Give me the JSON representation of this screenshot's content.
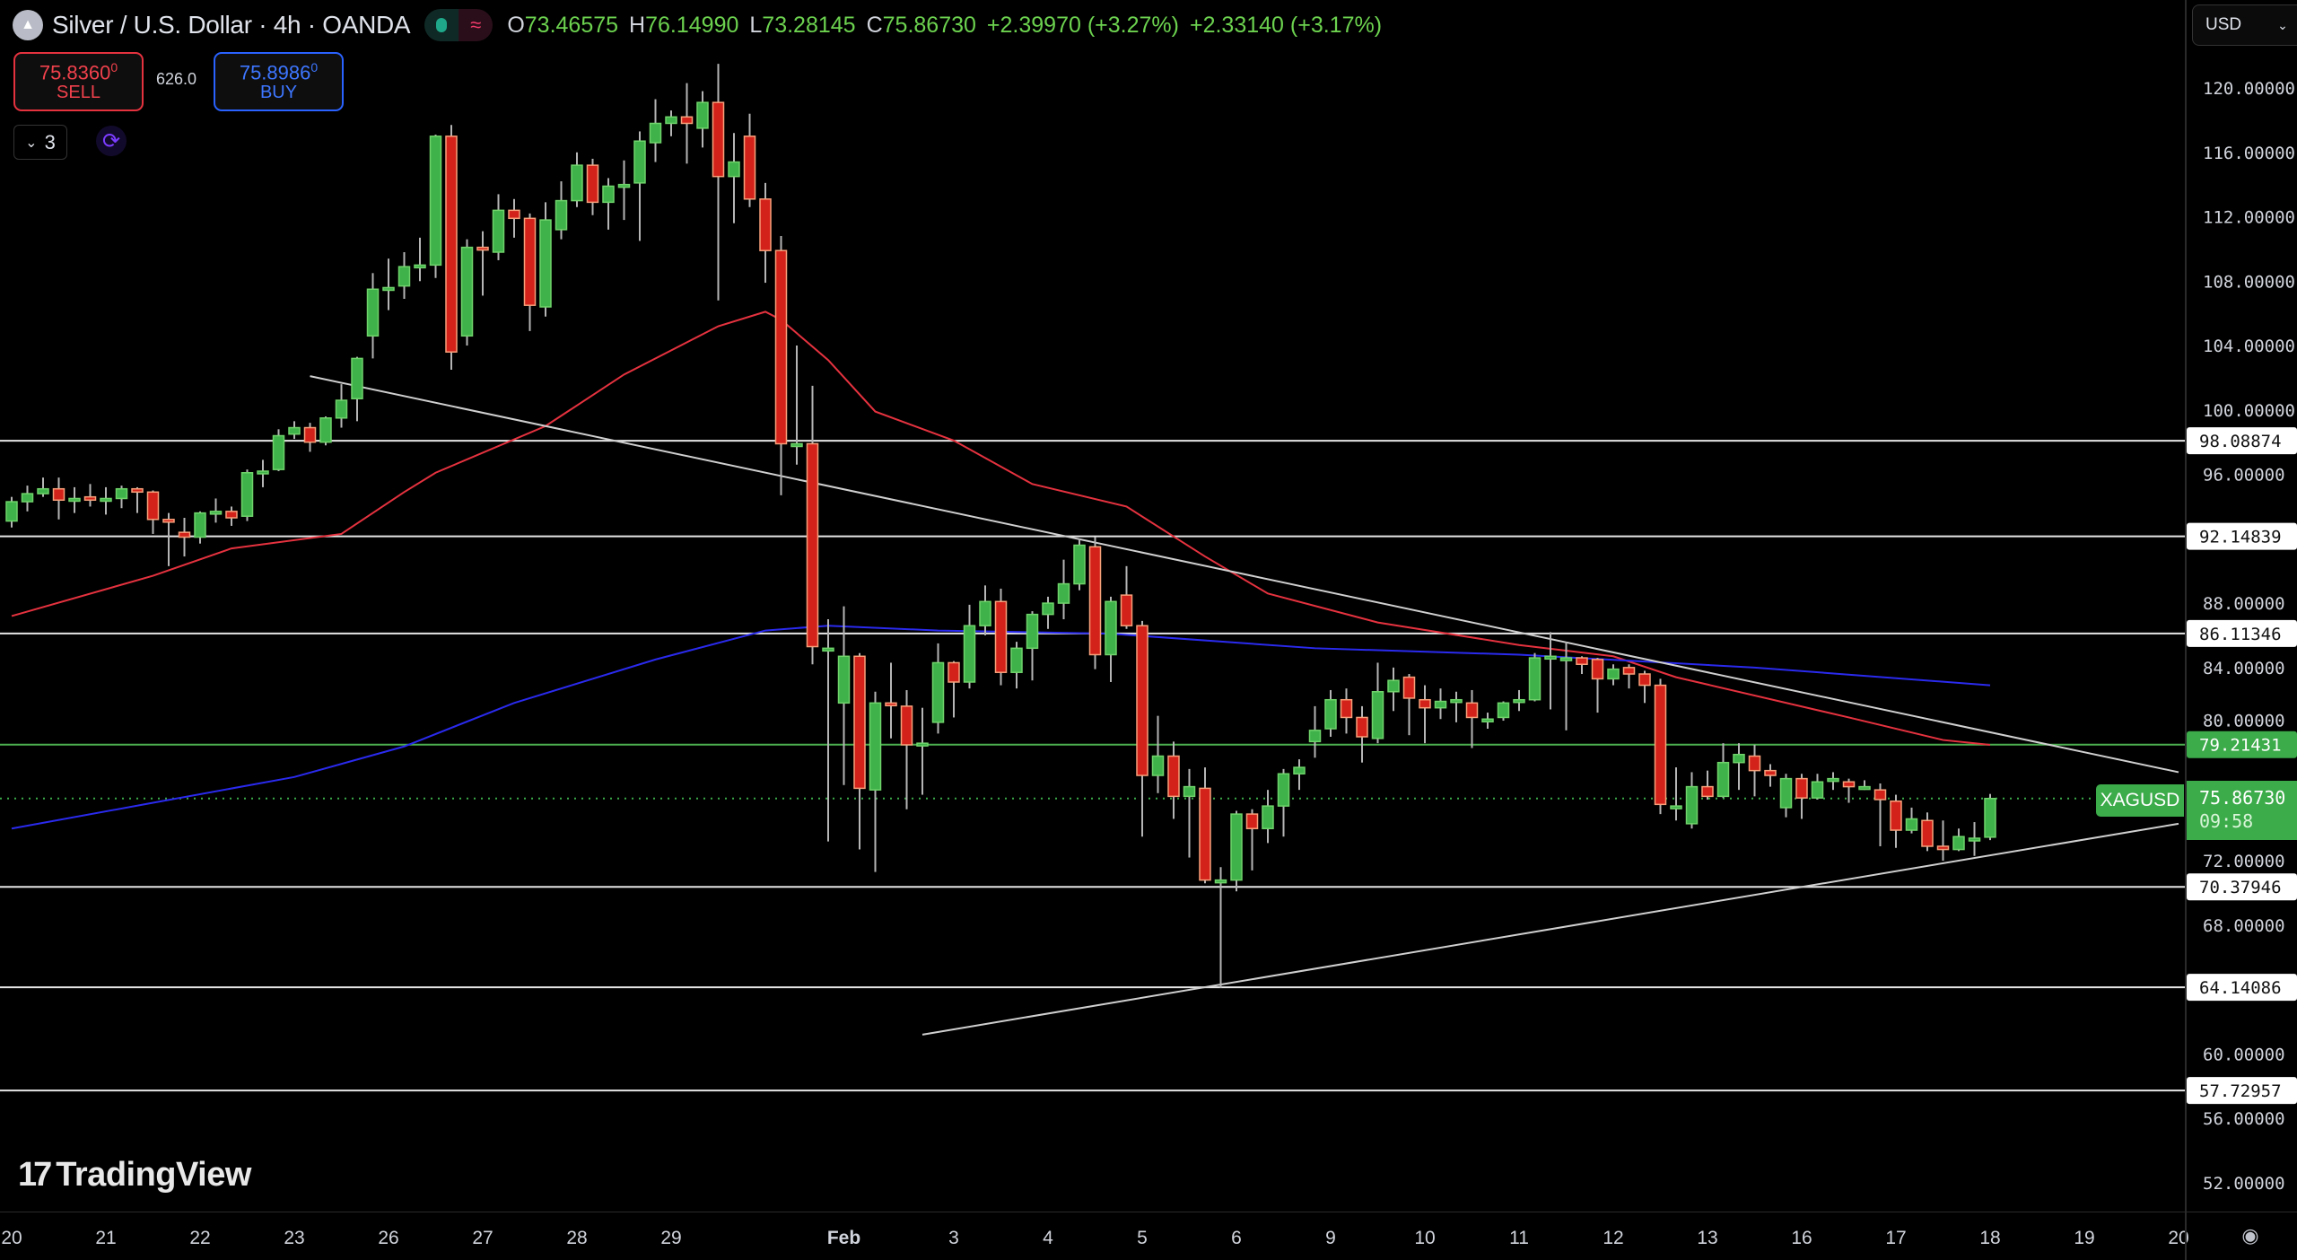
{
  "header": {
    "symbol_icon": "silver-coin-icon",
    "title": "Silver / U.S. Dollar · 4h · OANDA",
    "status_icons": [
      "market-open-dot-icon",
      "delayed-data-icon"
    ],
    "ohlc": [
      {
        "key": "O",
        "value": "73.46575"
      },
      {
        "key": "H",
        "value": "76.14990"
      },
      {
        "key": "L",
        "value": "73.28145"
      },
      {
        "key": "C",
        "value": "75.86730"
      }
    ],
    "change": "+2.39970 (+3.27%)",
    "change2": "+2.33140 (+3.17%)"
  },
  "trade": {
    "sell_price": "75.8360",
    "sell_sup": "0",
    "sell_label": "SELL",
    "spread": "626.0",
    "buy_price": "75.8986",
    "buy_sup": "0",
    "buy_label": "BUY"
  },
  "indicators_toggle": {
    "count": "3",
    "icon": "chevron-down-icon"
  },
  "currency_select": {
    "value": "USD",
    "icon": "chevron-down-icon"
  },
  "branding": {
    "text": "TradingView"
  },
  "colors": {
    "up": "#3fb24a",
    "up_border": "#6fd36a",
    "down": "#d3221a",
    "down_border": "#f7a07a",
    "wick": "#b5b5b5",
    "ma_red": "#e5323f",
    "ma_blue": "#2a2aee",
    "level": "#e6e6e6",
    "level_green": "#4caf50",
    "trend": "#cfcfcf"
  },
  "chart_data": {
    "type": "candlestick",
    "symbol": "XAGUSD",
    "interval": "4h",
    "ylim": [
      50,
      121.5
    ],
    "y_ticks": [
      "120.00000",
      "116.00000",
      "112.00000",
      "108.00000",
      "104.00000",
      "100.00000",
      "96.00000",
      "88.00000",
      "84.00000",
      "80.00000",
      "72.00000",
      "68.00000",
      "60.00000",
      "56.00000",
      "52.00000"
    ],
    "x_ticks": [
      {
        "label": "20",
        "bar": 0
      },
      {
        "label": "21",
        "bar": 6
      },
      {
        "label": "22",
        "bar": 12
      },
      {
        "label": "23",
        "bar": 18
      },
      {
        "label": "26",
        "bar": 24
      },
      {
        "label": "27",
        "bar": 30
      },
      {
        "label": "28",
        "bar": 36
      },
      {
        "label": "29",
        "bar": 42
      },
      {
        "label": "Feb",
        "bar": 53
      },
      {
        "label": "3",
        "bar": 60
      },
      {
        "label": "4",
        "bar": 66
      },
      {
        "label": "5",
        "bar": 72
      },
      {
        "label": "6",
        "bar": 78
      },
      {
        "label": "9",
        "bar": 84
      },
      {
        "label": "10",
        "bar": 90
      },
      {
        "label": "11",
        "bar": 96
      },
      {
        "label": "12",
        "bar": 102
      },
      {
        "label": "13",
        "bar": 108
      },
      {
        "label": "16",
        "bar": 114
      },
      {
        "label": "17",
        "bar": 120
      },
      {
        "label": "18",
        "bar": 126
      },
      {
        "label": "19",
        "bar": 132
      },
      {
        "label": "20",
        "bar": 138
      }
    ],
    "candles_ohlc": [
      [
        93.1,
        94.6,
        92.7,
        94.3
      ],
      [
        94.3,
        95.3,
        93.7,
        94.8
      ],
      [
        94.8,
        95.8,
        94.6,
        95.1
      ],
      [
        95.1,
        95.8,
        93.2,
        94.4
      ],
      [
        94.4,
        95.2,
        93.6,
        94.5
      ],
      [
        94.6,
        95.4,
        94.0,
        94.4
      ],
      [
        94.4,
        95.2,
        93.5,
        94.5
      ],
      [
        94.5,
        95.3,
        93.9,
        95.1
      ],
      [
        95.1,
        95.2,
        93.6,
        94.9
      ],
      [
        94.9,
        95.0,
        92.3,
        93.2
      ],
      [
        93.2,
        93.6,
        90.3,
        93.1
      ],
      [
        92.4,
        93.3,
        90.9,
        92.1
      ],
      [
        92.1,
        93.7,
        91.7,
        93.6
      ],
      [
        93.6,
        94.5,
        93.0,
        93.7
      ],
      [
        93.7,
        94.0,
        92.8,
        93.3
      ],
      [
        93.4,
        96.3,
        93.1,
        96.1
      ],
      [
        96.2,
        96.9,
        95.2,
        96.2
      ],
      [
        96.3,
        98.8,
        96.2,
        98.4
      ],
      [
        98.5,
        99.3,
        98.2,
        98.9
      ],
      [
        98.9,
        99.2,
        97.4,
        98.0
      ],
      [
        98.0,
        99.6,
        97.8,
        99.5
      ],
      [
        99.5,
        101.6,
        98.9,
        100.6
      ],
      [
        100.7,
        103.3,
        99.3,
        103.2
      ],
      [
        104.6,
        108.5,
        103.2,
        107.5
      ],
      [
        107.5,
        109.4,
        106.2,
        107.6
      ],
      [
        107.7,
        109.8,
        106.9,
        108.9
      ],
      [
        108.9,
        110.7,
        108.0,
        109.0
      ],
      [
        109.0,
        117.1,
        108.2,
        117.0
      ],
      [
        117.0,
        117.7,
        102.5,
        103.6
      ],
      [
        104.6,
        110.6,
        104.0,
        110.1
      ],
      [
        110.1,
        111.1,
        107.1,
        110.0
      ],
      [
        109.8,
        113.4,
        109.3,
        112.4
      ],
      [
        112.4,
        113.1,
        110.7,
        111.9
      ],
      [
        111.9,
        112.2,
        104.9,
        106.5
      ],
      [
        106.4,
        112.9,
        105.8,
        111.8
      ],
      [
        111.2,
        114.2,
        110.6,
        113.0
      ],
      [
        113.0,
        116.0,
        112.6,
        115.2
      ],
      [
        115.2,
        115.6,
        112.1,
        112.9
      ],
      [
        112.9,
        114.4,
        111.2,
        113.9
      ],
      [
        113.9,
        115.5,
        111.8,
        114.0
      ],
      [
        114.1,
        117.3,
        110.5,
        116.7
      ],
      [
        116.6,
        119.3,
        115.4,
        117.8
      ],
      [
        117.8,
        118.6,
        117.0,
        118.2
      ],
      [
        118.2,
        120.3,
        115.3,
        117.8
      ],
      [
        117.5,
        119.8,
        116.3,
        119.1
      ],
      [
        119.1,
        121.5,
        106.8,
        114.5
      ],
      [
        114.5,
        117.2,
        111.6,
        115.4
      ],
      [
        117.0,
        118.4,
        112.6,
        113.1
      ],
      [
        113.1,
        114.1,
        107.9,
        109.9
      ],
      [
        109.9,
        110.8,
        94.7,
        97.9
      ],
      [
        97.9,
        104.0,
        96.6,
        97.9
      ],
      [
        97.9,
        101.5,
        84.2,
        85.3
      ],
      [
        85.2,
        87.0,
        73.2,
        85.2
      ],
      [
        81.8,
        87.8,
        76.7,
        84.7
      ],
      [
        84.7,
        84.9,
        72.7,
        76.5
      ],
      [
        76.4,
        82.5,
        71.3,
        81.8
      ],
      [
        81.8,
        84.3,
        79.6,
        81.7
      ],
      [
        81.6,
        82.6,
        75.2,
        79.2
      ],
      [
        79.2,
        81.5,
        76.1,
        79.3
      ],
      [
        80.6,
        85.5,
        79.9,
        84.3
      ],
      [
        84.3,
        84.4,
        80.9,
        83.1
      ],
      [
        83.1,
        87.9,
        82.7,
        86.6
      ],
      [
        86.6,
        89.1,
        86.0,
        88.1
      ],
      [
        88.1,
        88.9,
        82.9,
        83.7
      ],
      [
        83.7,
        85.6,
        82.7,
        85.2
      ],
      [
        85.2,
        87.5,
        83.2,
        87.3
      ],
      [
        87.3,
        88.4,
        86.4,
        88.0
      ],
      [
        88.0,
        90.7,
        87.0,
        89.2
      ],
      [
        89.2,
        92.0,
        88.8,
        91.6
      ],
      [
        91.5,
        92.1,
        83.9,
        84.8
      ],
      [
        84.8,
        88.4,
        83.1,
        88.1
      ],
      [
        88.5,
        90.3,
        86.4,
        86.6
      ],
      [
        86.6,
        86.9,
        73.5,
        77.3
      ],
      [
        77.3,
        81.0,
        76.2,
        78.5
      ],
      [
        78.5,
        79.4,
        74.6,
        76.0
      ],
      [
        76.0,
        77.7,
        72.2,
        76.6
      ],
      [
        76.5,
        77.8,
        70.6,
        70.8
      ],
      [
        70.8,
        71.6,
        64.1,
        70.8
      ],
      [
        70.8,
        75.1,
        70.1,
        74.9
      ],
      [
        74.9,
        75.2,
        71.4,
        74.0
      ],
      [
        74.0,
        76.4,
        73.1,
        75.4
      ],
      [
        75.4,
        77.7,
        73.5,
        77.4
      ],
      [
        77.4,
        78.3,
        76.4,
        77.8
      ],
      [
        79.4,
        81.6,
        78.4,
        80.1
      ],
      [
        80.2,
        82.6,
        79.7,
        82.0
      ],
      [
        82.0,
        82.7,
        79.9,
        80.9
      ],
      [
        80.9,
        81.6,
        78.1,
        79.7
      ],
      [
        79.6,
        84.3,
        79.3,
        82.5
      ],
      [
        82.5,
        84.0,
        81.3,
        83.2
      ],
      [
        83.4,
        83.6,
        79.8,
        82.1
      ],
      [
        82.0,
        82.9,
        79.3,
        81.5
      ],
      [
        81.5,
        82.7,
        80.8,
        81.9
      ],
      [
        82.0,
        82.5,
        80.6,
        82.0
      ],
      [
        81.8,
        82.6,
        79.0,
        80.9
      ],
      [
        80.8,
        81.2,
        80.2,
        80.8
      ],
      [
        80.9,
        81.9,
        80.7,
        81.8
      ],
      [
        82.0,
        82.6,
        81.3,
        82.0
      ],
      [
        82.0,
        84.9,
        81.9,
        84.6
      ],
      [
        84.7,
        86.2,
        81.4,
        84.7
      ],
      [
        84.6,
        85.6,
        80.1,
        84.6
      ],
      [
        84.6,
        84.7,
        83.6,
        84.2
      ],
      [
        84.5,
        84.6,
        81.2,
        83.3
      ],
      [
        83.3,
        84.2,
        82.9,
        83.9
      ],
      [
        84.0,
        84.2,
        82.7,
        83.6
      ],
      [
        83.6,
        83.8,
        81.8,
        82.9
      ],
      [
        82.9,
        83.3,
        74.9,
        75.5
      ],
      [
        75.4,
        77.8,
        74.5,
        75.4
      ],
      [
        74.3,
        77.5,
        74.0,
        76.6
      ],
      [
        76.6,
        77.6,
        75.8,
        76.0
      ],
      [
        76.0,
        79.3,
        75.9,
        78.1
      ],
      [
        78.1,
        79.3,
        76.4,
        78.6
      ],
      [
        78.5,
        79.2,
        76.0,
        77.6
      ],
      [
        77.6,
        78.0,
        76.6,
        77.3
      ],
      [
        75.3,
        77.4,
        74.7,
        77.1
      ],
      [
        77.1,
        77.4,
        74.6,
        75.9
      ],
      [
        75.9,
        77.4,
        75.8,
        76.9
      ],
      [
        77.1,
        77.5,
        76.4,
        77.1
      ],
      [
        76.9,
        77.1,
        75.6,
        76.6
      ],
      [
        76.6,
        77.0,
        76.4,
        76.6
      ],
      [
        76.4,
        76.8,
        72.9,
        75.8
      ],
      [
        75.7,
        76.1,
        72.8,
        73.9
      ],
      [
        73.9,
        75.3,
        73.7,
        74.6
      ],
      [
        74.5,
        75.0,
        72.6,
        72.9
      ],
      [
        72.9,
        74.5,
        72.0,
        72.7
      ],
      [
        72.7,
        74.0,
        72.6,
        73.5
      ],
      [
        73.3,
        74.4,
        72.3,
        73.4
      ],
      [
        73.46575,
        76.1499,
        73.28145,
        75.8673
      ]
    ],
    "moving_averages": [
      {
        "color": "#e5323f",
        "points": [
          [
            0,
            87.2
          ],
          [
            9,
            89.7
          ],
          [
            14,
            91.4
          ],
          [
            21,
            92.3
          ],
          [
            25,
            94.9
          ],
          [
            27,
            96.1
          ],
          [
            34,
            99.0
          ],
          [
            39,
            102.2
          ],
          [
            45,
            105.2
          ],
          [
            48,
            106.1
          ],
          [
            49,
            105.6
          ],
          [
            52,
            103.1
          ],
          [
            55,
            99.9
          ],
          [
            60,
            98.1
          ],
          [
            65,
            95.4
          ],
          [
            71,
            94.0
          ],
          [
            76,
            90.9
          ],
          [
            80,
            88.6
          ],
          [
            87,
            86.8
          ],
          [
            96,
            85.4
          ],
          [
            102,
            84.7
          ],
          [
            106,
            83.4
          ],
          [
            117,
            80.9
          ],
          [
            123,
            79.5
          ],
          [
            126,
            79.2
          ]
        ]
      },
      {
        "color": "#2a2aee",
        "points": [
          [
            0,
            74.0
          ],
          [
            9,
            75.6
          ],
          [
            18,
            77.2
          ],
          [
            25,
            79.1
          ],
          [
            32,
            81.8
          ],
          [
            41,
            84.5
          ],
          [
            48,
            86.3
          ],
          [
            52,
            86.6
          ],
          [
            59,
            86.3
          ],
          [
            70,
            86.1
          ],
          [
            83,
            85.2
          ],
          [
            96,
            84.8
          ],
          [
            111,
            84.0
          ],
          [
            126,
            82.9
          ]
        ]
      }
    ],
    "horizontal_levels": [
      {
        "price": 98.08874,
        "label": "98.08874",
        "color": "#e6e6e6"
      },
      {
        "price": 92.14839,
        "label": "92.14839",
        "color": "#e6e6e6"
      },
      {
        "price": 86.11346,
        "label": "86.11346",
        "color": "#e6e6e6"
      },
      {
        "price": 79.21431,
        "label": "79.21431",
        "color": "#4caf50"
      },
      {
        "price": 70.37946,
        "label": "70.37946",
        "color": "#e6e6e6"
      },
      {
        "price": 64.14086,
        "label": "64.14086",
        "color": "#e6e6e6"
      },
      {
        "price": 57.72957,
        "label": "57.72957",
        "color": "#e6e6e6"
      }
    ],
    "trendlines": [
      {
        "from": {
          "bar": 19,
          "price": 102.1
        },
        "to": {
          "bar": 138,
          "price": 77.5
        }
      },
      {
        "from": {
          "bar": 58,
          "price": 61.2
        },
        "to": {
          "bar": 138,
          "price": 74.3
        }
      }
    ],
    "last_price": {
      "symbol": "XAGUSD",
      "price": 75.8673,
      "label": "75.86730",
      "countdown": "09:58"
    }
  }
}
